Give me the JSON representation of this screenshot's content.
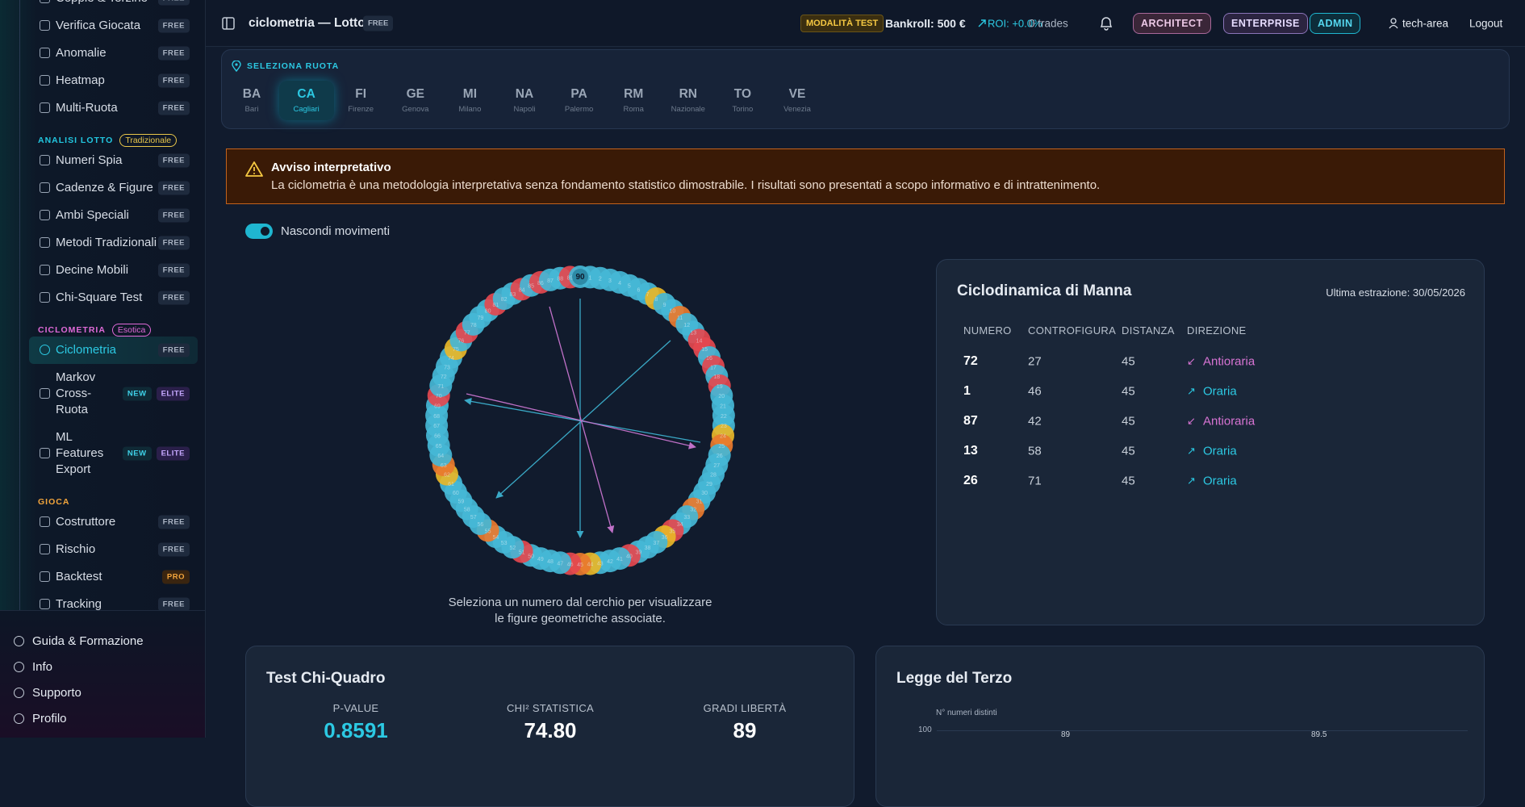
{
  "sidebar": {
    "nav": [
      {
        "label": "Coppie & Terzine",
        "badges": [
          {
            "label": "FREE",
            "color": "#aab4c3",
            "bg": "#1e2a3d"
          }
        ]
      },
      {
        "label": "Verifica Giocata",
        "badges": [
          {
            "label": "FREE",
            "color": "#aab4c3",
            "bg": "#1e2a3d"
          }
        ]
      },
      {
        "label": "Anomalie",
        "badges": [
          {
            "label": "FREE",
            "color": "#aab4c3",
            "bg": "#1e2a3d"
          }
        ]
      },
      {
        "label": "Heatmap",
        "badges": [
          {
            "label": "FREE",
            "color": "#aab4c3",
            "bg": "#1e2a3d"
          }
        ]
      },
      {
        "label": "Multi-Ruota",
        "badges": [
          {
            "label": "FREE",
            "color": "#aab4c3",
            "bg": "#1e2a3d"
          }
        ]
      },
      {
        "section": "ANALISI LOTTO",
        "color": "#22c7e0",
        "tag": {
          "label": "Tradizionale",
          "color": "#e8c64a"
        }
      },
      {
        "label": "Numeri Spia",
        "badges": [
          {
            "label": "FREE",
            "color": "#aab4c3",
            "bg": "#1e2a3d"
          }
        ]
      },
      {
        "label": "Cadenze & Figure",
        "badges": [
          {
            "label": "FREE",
            "color": "#aab4c3",
            "bg": "#1e2a3d"
          }
        ]
      },
      {
        "label": "Ambi Speciali",
        "badges": [
          {
            "label": "FREE",
            "color": "#aab4c3",
            "bg": "#1e2a3d"
          }
        ]
      },
      {
        "label": "Metodi Tradizionali",
        "badges": [
          {
            "label": "FREE",
            "color": "#aab4c3",
            "bg": "#1e2a3d"
          }
        ]
      },
      {
        "label": "Decine Mobili",
        "badges": [
          {
            "label": "FREE",
            "color": "#aab4c3",
            "bg": "#1e2a3d"
          }
        ]
      },
      {
        "label": "Chi-Square Test",
        "badges": [
          {
            "label": "FREE",
            "color": "#aab4c3",
            "bg": "#1e2a3d"
          }
        ]
      },
      {
        "section": "CICLOMETRIA",
        "color": "#e06ad8",
        "tag": {
          "label": "Esotica",
          "color": "#e06ad8"
        }
      },
      {
        "label": "Ciclometria",
        "active": true,
        "badges": [
          {
            "label": "FREE",
            "color": "#aab4c3",
            "bg": "#1e2a3d"
          }
        ]
      },
      {
        "label": "Markov Cross-Ruota",
        "badges": [
          {
            "label": "NEW",
            "color": "#3fd3ea",
            "bg": "#0f2a36"
          },
          {
            "label": "ELITE",
            "color": "#c6a8ff",
            "bg": "#2a1f4a"
          }
        ]
      },
      {
        "label": "ML Features Export",
        "badges": [
          {
            "label": "NEW",
            "color": "#3fd3ea",
            "bg": "#0f2a36"
          },
          {
            "label": "ELITE",
            "color": "#c6a8ff",
            "bg": "#2a1f4a"
          }
        ]
      },
      {
        "section": "GIOCA",
        "color": "#f3a53c"
      },
      {
        "label": "Costruttore",
        "badges": [
          {
            "label": "FREE",
            "color": "#aab4c3",
            "bg": "#1e2a3d"
          }
        ]
      },
      {
        "label": "Rischio",
        "badges": [
          {
            "label": "FREE",
            "color": "#aab4c3",
            "bg": "#1e2a3d"
          }
        ]
      },
      {
        "label": "Backtest",
        "badges": [
          {
            "label": "PRO",
            "color": "#f3a53c",
            "bg": "#3a2510"
          }
        ]
      },
      {
        "label": "Tracking",
        "badges": [
          {
            "label": "FREE",
            "color": "#aab4c3",
            "bg": "#1e2a3d"
          }
        ]
      }
    ],
    "footer": [
      "Guida & Formazione",
      "Info",
      "Supporto",
      "Profilo"
    ]
  },
  "header": {
    "title": "ciclometria — Lotto",
    "plan": "FREE",
    "mode": "MODALITÀ TEST",
    "bankroll": "Bankroll: 500 €",
    "roi": "ROI: +0.0%",
    "trades": "0 trades",
    "badges": [
      {
        "label": "ARCHITECT",
        "color": "#ecc8e6",
        "bg": "#3a2638",
        "border": "#a8689a"
      },
      {
        "label": "ENTERPRISE",
        "color": "#e6dcff",
        "bg": "#2b2440",
        "border": "#8a74b8"
      },
      {
        "label": "ADMIN",
        "color": "#55d8ef",
        "bg": "#0d2d3a",
        "border": "#1fb6d0"
      }
    ],
    "user": "tech-area",
    "logout": "Logout"
  },
  "ruota": {
    "label": "SELEZIONA RUOTA",
    "items": [
      {
        "code": "BA",
        "name": "Bari"
      },
      {
        "code": "CA",
        "name": "Cagliari",
        "active": true
      },
      {
        "code": "FI",
        "name": "Firenze"
      },
      {
        "code": "GE",
        "name": "Genova"
      },
      {
        "code": "MI",
        "name": "Milano"
      },
      {
        "code": "NA",
        "name": "Napoli"
      },
      {
        "code": "PA",
        "name": "Palermo"
      },
      {
        "code": "RM",
        "name": "Roma"
      },
      {
        "code": "RN",
        "name": "Nazionale"
      },
      {
        "code": "TO",
        "name": "Torino"
      },
      {
        "code": "VE",
        "name": "Venezia"
      }
    ]
  },
  "warning": {
    "title": "Avviso interpretativo",
    "text": "La ciclometria è una metodologia interpretativa senza fondamento statistico dimostrabile. I risultati sono presentati a scopo informativo e di intrattenimento."
  },
  "toggle": {
    "label": "Nascondi movimenti",
    "on": true
  },
  "circle": {
    "numbers": [
      1,
      2,
      3,
      4,
      5,
      6,
      7,
      8,
      9,
      10,
      11,
      12,
      13,
      14,
      15,
      16,
      17,
      18,
      19,
      20,
      21,
      22,
      23,
      24,
      25,
      26,
      27,
      28,
      29,
      30,
      31,
      32,
      33,
      34,
      35,
      36,
      37,
      38,
      39,
      40,
      41,
      42,
      43,
      44,
      45,
      46,
      47,
      48,
      49,
      50,
      51,
      52,
      53,
      54,
      55,
      56,
      57,
      58,
      59,
      60,
      61,
      62,
      63,
      64,
      65,
      66,
      67,
      68,
      69,
      70,
      71,
      72,
      73,
      74,
      75,
      76,
      77,
      78,
      79,
      80,
      81,
      82,
      83,
      84,
      85,
      86,
      87,
      88,
      89,
      90
    ],
    "red": [
      14,
      15,
      17,
      19,
      35,
      40,
      46,
      51,
      70,
      77,
      81,
      84,
      86,
      89
    ],
    "orange": [
      11,
      25,
      32,
      45,
      55,
      63
    ],
    "yellow": [
      8,
      24,
      36,
      44,
      62,
      75
    ],
    "caption": [
      "Seleziona un numero dal cerchio per visualizzare",
      "le figure geometriche associate."
    ]
  },
  "card": {
    "title": "Ciclodinamica di Manna",
    "subtitle": "Ultima estrazione: 30/05/2026",
    "columns": [
      "NUMERO",
      "CONTROFIGURA",
      "DISTANZA",
      "DIREZIONE"
    ],
    "rows": [
      {
        "numero": 72,
        "controfigura": 27,
        "distanza": 45,
        "icon": "↙",
        "direzione": "Antioraria",
        "color": "#d874d4"
      },
      {
        "numero": 1,
        "controfigura": 46,
        "distanza": 45,
        "icon": "↗",
        "direzione": "Oraria",
        "color": "#2cc9e3"
      },
      {
        "numero": 87,
        "controfigura": 42,
        "distanza": 45,
        "icon": "↙",
        "direzione": "Antioraria",
        "color": "#d874d4"
      },
      {
        "numero": 13,
        "controfigura": 58,
        "distanza": 45,
        "icon": "↗",
        "direzione": "Oraria",
        "color": "#2cc9e3"
      },
      {
        "numero": 26,
        "controfigura": 71,
        "distanza": 45,
        "icon": "↗",
        "direzione": "Oraria",
        "color": "#2cc9e3"
      }
    ]
  },
  "chi": {
    "title": "Test Chi-Quadro",
    "stats": [
      {
        "label": "P-VALUE",
        "value": "0.8591",
        "color": "#2cc9e3"
      },
      {
        "label": "CHI² STATISTICA",
        "value": "74.80",
        "color": "#ffffff"
      },
      {
        "label": "GRADI LIBERTÀ",
        "value": "89",
        "color": "#ffffff"
      }
    ]
  },
  "terzo": {
    "title": "Legge del Terzo",
    "y_label": "N° numeri distinti",
    "yticks": [
      100
    ],
    "values": [
      89,
      89.5
    ]
  }
}
